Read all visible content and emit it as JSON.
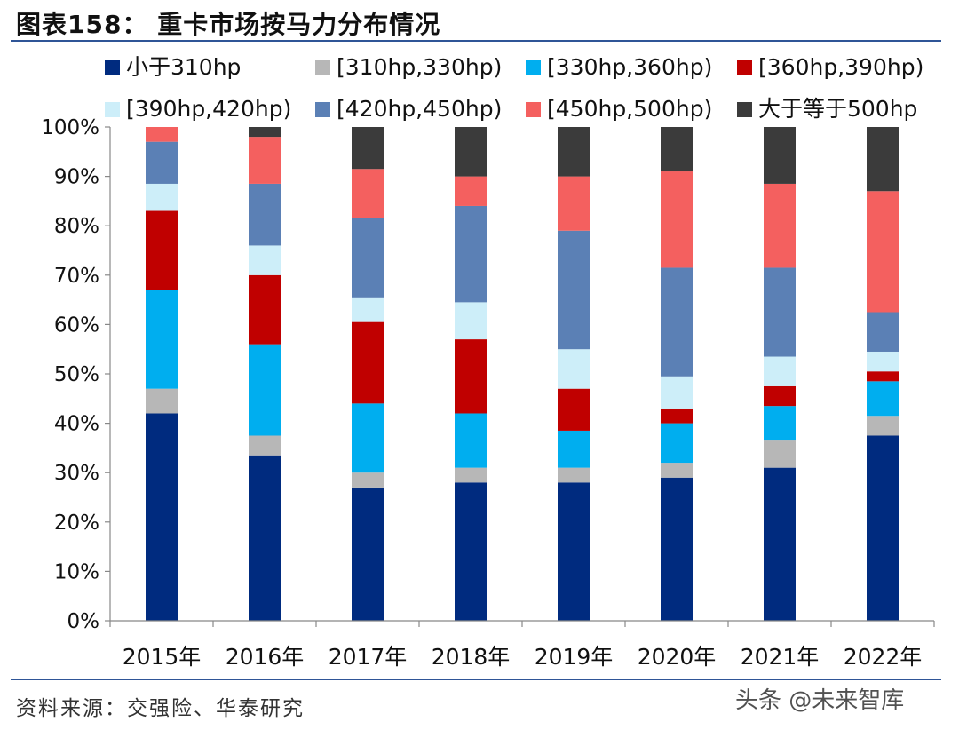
{
  "header": {
    "title": "图表158：  重卡市场按马力分布情况"
  },
  "footer": {
    "source": "资料来源：交强险、华泰研究",
    "watermark": "头条 @未来智库"
  },
  "chart_data": {
    "type": "stacked-bar",
    "title": "重卡市场按马力分布情况",
    "xlabel": "",
    "ylabel": "",
    "ylim": [
      0,
      100
    ],
    "yticks": [
      "0%",
      "10%",
      "20%",
      "30%",
      "40%",
      "50%",
      "60%",
      "70%",
      "80%",
      "90%",
      "100%"
    ],
    "categories": [
      "2015年",
      "2016年",
      "2017年",
      "2018年",
      "2019年",
      "2020年",
      "2021年",
      "2022年"
    ],
    "legend_position": "top",
    "series": [
      {
        "name": "小于310hp",
        "color": "#002b7f",
        "values": [
          42,
          33.5,
          27,
          28,
          28,
          29,
          31,
          37.5
        ]
      },
      {
        "name": "[310hp,330hp)",
        "color": "#b7b7b7",
        "values": [
          5,
          4,
          3,
          3,
          3,
          3,
          5.5,
          4
        ]
      },
      {
        "name": "[330hp,360hp)",
        "color": "#00aeef",
        "values": [
          20,
          18.5,
          14,
          11,
          7.5,
          8,
          7,
          7
        ]
      },
      {
        "name": "[360hp,390hp)",
        "color": "#c00000",
        "values": [
          16,
          14,
          16.5,
          15,
          8.5,
          3,
          4,
          2
        ]
      },
      {
        "name": "[390hp,420hp)",
        "color": "#cdeef9",
        "values": [
          5.5,
          6,
          5,
          7.5,
          8,
          6.5,
          6,
          4
        ]
      },
      {
        "name": "[420hp,450hp)",
        "color": "#5b80b5",
        "values": [
          8.5,
          12.5,
          16,
          19.5,
          24,
          22,
          18,
          8
        ]
      },
      {
        "name": "[450hp,500hp)",
        "color": "#f4605f",
        "values": [
          3,
          9.5,
          10,
          6,
          11,
          19.5,
          17,
          24.5
        ]
      },
      {
        "name": "大于等于500hp",
        "color": "#3b3b3b",
        "values": [
          0,
          2,
          8.5,
          10,
          10,
          9,
          11.5,
          13
        ]
      }
    ]
  }
}
